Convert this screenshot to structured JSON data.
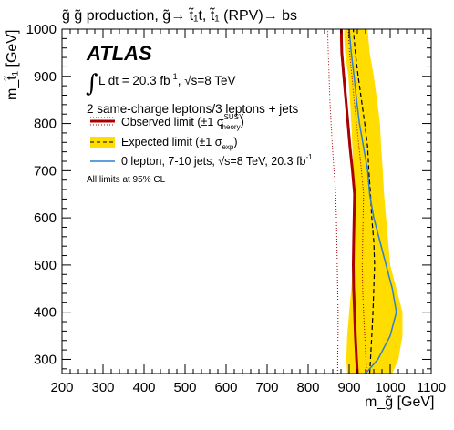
{
  "title": "g̃ g̃ production, g̃→ t̃₁t, t̃₁ (RPV)→ bs",
  "chart_data": {
    "type": "line",
    "xlabel": "m_g̃ [GeV]",
    "ylabel": "m_t̃₁ [GeV]",
    "xlim": [
      200,
      1100
    ],
    "ylim": [
      270,
      1000
    ],
    "x_ticks": [
      200,
      300,
      400,
      500,
      600,
      700,
      800,
      900,
      1000,
      1100
    ],
    "y_ticks": [
      300,
      400,
      500,
      600,
      700,
      800,
      900,
      1000
    ],
    "grid": false,
    "legend_position": "top-left",
    "experiment": "ATLAS",
    "lumi_label": "∫ L dt = 20.3 fb⁻¹, √s=8 TeV",
    "selection_label": "2 same-charge leptons/3 leptons + jets",
    "footnote": "All limits at 95% CL",
    "series": [
      {
        "name": "Observed limit (±1 σ_theory^SUSY)",
        "style": "solid",
        "color": "#aa0000",
        "x": [
          920,
          918,
          915,
          913,
          911,
          910,
          911,
          912,
          913,
          908,
          902,
          897,
          892,
          887,
          882,
          881,
          881
        ],
        "y": [
          270,
          300,
          350,
          400,
          450,
          500,
          550,
          600,
          650,
          700,
          750,
          800,
          850,
          900,
          950,
          980,
          1000
        ]
      },
      {
        "name": "Observed limit −1σ theory",
        "style": "dotted",
        "color": "#aa0000",
        "x": [
          872,
          872,
          873,
          873,
          872,
          871,
          870,
          869,
          867,
          863,
          859,
          856,
          853,
          851,
          849,
          848,
          848
        ],
        "y": [
          270,
          300,
          350,
          400,
          450,
          500,
          550,
          600,
          650,
          700,
          750,
          800,
          850,
          900,
          950,
          980,
          1000
        ]
      },
      {
        "name": "Observed limit +1σ theory",
        "style": "dotted",
        "color": "#aa0000",
        "x": [
          943,
          941,
          938,
          935,
          933,
          932,
          933,
          934,
          935,
          930,
          924,
          918,
          912,
          907,
          901,
          899,
          898
        ],
        "y": [
          270,
          300,
          350,
          400,
          450,
          500,
          550,
          600,
          650,
          700,
          750,
          800,
          850,
          900,
          950,
          980,
          1000
        ]
      },
      {
        "name": "Expected limit (±1 σ_exp)",
        "style": "dashed",
        "color": "#000000",
        "x": [
          950,
          952,
          955,
          958,
          960,
          962,
          960,
          955,
          952,
          948,
          945,
          938,
          930,
          922,
          915,
          912,
          910
        ],
        "y": [
          270,
          300,
          350,
          400,
          450,
          500,
          550,
          600,
          650,
          700,
          750,
          800,
          850,
          900,
          950,
          980,
          1000
        ]
      },
      {
        "name": "Expected −1σ",
        "style": "band-lower",
        "color": "#ffdd00",
        "x": [
          895,
          893,
          895,
          900,
          905,
          910,
          912,
          913,
          913,
          910,
          908,
          905,
          902,
          898,
          890,
          888,
          888
        ],
        "y": [
          270,
          300,
          350,
          400,
          450,
          500,
          550,
          600,
          650,
          700,
          750,
          800,
          850,
          900,
          950,
          980,
          1000
        ]
      },
      {
        "name": "Expected +1σ",
        "style": "band-upper",
        "color": "#ffdd00",
        "x": [
          1005,
          1020,
          1030,
          1030,
          1015,
          1000,
          995,
          990,
          985,
          982,
          978,
          975,
          968,
          960,
          950,
          947,
          945
        ],
        "y": [
          270,
          300,
          350,
          400,
          450,
          500,
          550,
          600,
          650,
          700,
          750,
          800,
          850,
          900,
          950,
          980,
          1000
        ]
      },
      {
        "name": "0 lepton, 7-10 jets, √s=8 TeV, 20.3 fb⁻¹",
        "style": "solid",
        "color": "#2f7fd0",
        "x": [
          940,
          970,
          1000,
          1015,
          1005,
          990,
          975,
          960,
          950,
          945,
          935,
          925,
          918,
          912,
          905,
          902,
          900
        ],
        "y": [
          270,
          300,
          350,
          400,
          450,
          500,
          550,
          600,
          650,
          700,
          750,
          800,
          850,
          900,
          950,
          980,
          1000
        ]
      }
    ]
  },
  "legend": {
    "observed_main": "Observed limit (±1 σ",
    "observed_sup": "SUSY",
    "observed_sub": "theory",
    "observed_close": ")",
    "expected_main": "Expected limit (±1 σ",
    "expected_sub": "exp",
    "expected_close": ")",
    "zero_lepton": "0 lepton, 7-10 jets, √s=8 TeV, 20.3 fb",
    "zero_lepton_sup": "-1"
  },
  "annotations": {
    "lumi_main": "L dt = 20.3 fb",
    "lumi_sup": "-1",
    "lumi_tail": ", √s=8 TeV"
  },
  "colors": {
    "observed": "#aa0000",
    "expected_band": "#ffdd00",
    "expected_line": "#000000",
    "zero_lepton": "#2f7fd0"
  }
}
